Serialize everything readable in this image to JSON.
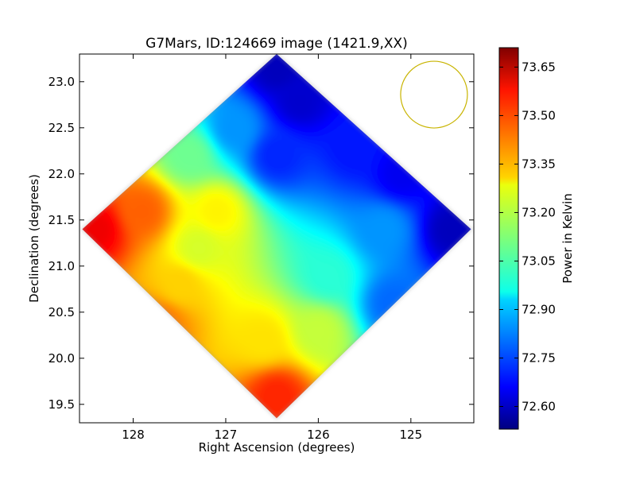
{
  "chart_data": {
    "type": "heatmap",
    "title": "G7Mars, ID:124669 image (1421.9,XX)",
    "xlabel": "Right Ascension (degrees)",
    "ylabel": "Declination (degrees)",
    "xlim": [
      128.58,
      124.32
    ],
    "ylim": [
      19.3,
      23.3
    ],
    "x_inverted": true,
    "xticks": [
      128,
      127,
      126,
      125
    ],
    "xtick_labels": [
      "128",
      "127",
      "126",
      "125"
    ],
    "yticks": [
      19.5,
      20.0,
      20.5,
      21.0,
      21.5,
      22.0,
      22.5,
      23.0
    ],
    "ytick_labels": [
      "19.5",
      "20.0",
      "20.5",
      "21.0",
      "21.5",
      "22.0",
      "22.5",
      "23.0"
    ],
    "colorbar": {
      "label": "Power in Kelvin",
      "range": [
        72.53,
        73.71
      ],
      "ticks": [
        72.6,
        72.75,
        72.9,
        73.05,
        73.2,
        73.35,
        73.5,
        73.65
      ],
      "tick_labels": [
        "72.60",
        "72.75",
        "72.90",
        "73.05",
        "73.20",
        "73.35",
        "73.50",
        "73.65"
      ],
      "colormap": "jet"
    },
    "map_region": {
      "shape": "diamond",
      "center": [
        126.45,
        21.4
      ],
      "vertices": [
        [
          126.45,
          23.3
        ],
        [
          124.35,
          21.4
        ],
        [
          126.45,
          19.35
        ],
        [
          128.55,
          21.4
        ]
      ]
    },
    "field_samples": [
      {
        "ra": 126.45,
        "dec": 23.15,
        "value": 72.6
      },
      {
        "ra": 126.45,
        "dec": 22.2,
        "value": 72.72
      },
      {
        "ra": 125.6,
        "dec": 22.3,
        "value": 72.7
      },
      {
        "ra": 126.9,
        "dec": 22.5,
        "value": 72.85
      },
      {
        "ra": 127.4,
        "dec": 22.2,
        "value": 73.1
      },
      {
        "ra": 127.9,
        "dec": 21.6,
        "value": 73.45
      },
      {
        "ra": 128.4,
        "dec": 21.4,
        "value": 73.58
      },
      {
        "ra": 127.3,
        "dec": 21.2,
        "value": 73.22
      },
      {
        "ra": 127.1,
        "dec": 21.6,
        "value": 73.28
      },
      {
        "ra": 125.3,
        "dec": 21.4,
        "value": 72.85
      },
      {
        "ra": 124.55,
        "dec": 21.4,
        "value": 72.6
      },
      {
        "ra": 125.9,
        "dec": 20.9,
        "value": 73.02
      },
      {
        "ra": 125.2,
        "dec": 20.6,
        "value": 72.8
      },
      {
        "ra": 126.0,
        "dec": 20.3,
        "value": 73.2
      },
      {
        "ra": 126.6,
        "dec": 20.2,
        "value": 73.3
      },
      {
        "ra": 126.45,
        "dec": 19.6,
        "value": 73.52
      },
      {
        "ra": 127.7,
        "dec": 20.4,
        "value": 73.42
      },
      {
        "ra": 127.5,
        "dec": 20.8,
        "value": 73.32
      },
      {
        "ra": 126.2,
        "dec": 22.8,
        "value": 72.62
      },
      {
        "ra": 125.1,
        "dec": 22.0,
        "value": 72.66
      }
    ],
    "beam_marker": {
      "shape": "circle",
      "ra": 124.75,
      "dec": 22.86,
      "color": "#c8b400"
    },
    "grid": false,
    "legend": "none"
  }
}
